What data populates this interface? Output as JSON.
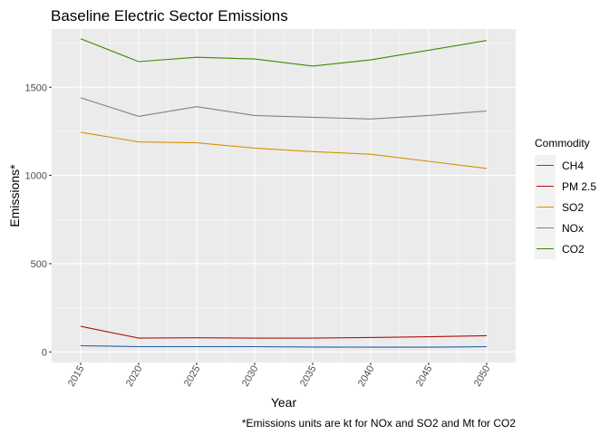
{
  "chart_data": {
    "type": "line",
    "title": "Baseline Electric Sector Emissions",
    "xlabel": "Year",
    "ylabel": "Emissions*",
    "caption": "*Emissions units are kt for NOx and SO2 and Mt for CO2",
    "x": [
      2015,
      2020,
      2025,
      2030,
      2035,
      2040,
      2045,
      2050
    ],
    "x_tick_labels": [
      "2015",
      "2020",
      "2025",
      "2030",
      "2035",
      "2040",
      "2045",
      "2050"
    ],
    "xlim": [
      2012.5,
      2052.5
    ],
    "y_ticks": [
      0,
      500,
      1000,
      1500
    ],
    "y_tick_labels": [
      "0",
      "500",
      "1000",
      "1500"
    ],
    "ylim": [
      -60,
      1830
    ],
    "grid": true,
    "legend": {
      "title": "Commodity",
      "position": "right"
    },
    "series": [
      {
        "name": "CH4",
        "color": "#1f5fa8",
        "values": [
          35,
          30,
          30,
          30,
          28,
          27,
          27,
          30
        ]
      },
      {
        "name": "PM 2.5",
        "color": "#b01010",
        "values": [
          145,
          78,
          80,
          78,
          78,
          82,
          86,
          92
        ]
      },
      {
        "name": "SO2",
        "color": "#d69200",
        "values": [
          1245,
          1190,
          1185,
          1155,
          1135,
          1120,
          1080,
          1040
        ]
      },
      {
        "name": "NOx",
        "color": "#808080",
        "values": [
          1440,
          1335,
          1390,
          1340,
          1330,
          1320,
          1340,
          1365
        ]
      },
      {
        "name": "CO2",
        "color": "#3e8a00",
        "values": [
          1775,
          1645,
          1670,
          1660,
          1620,
          1655,
          1710,
          1765
        ]
      }
    ]
  }
}
